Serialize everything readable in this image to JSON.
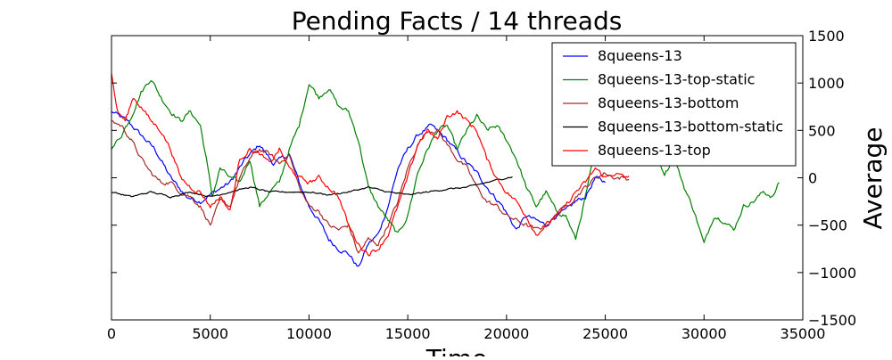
{
  "chart_data": {
    "type": "line",
    "title": "Pending Facts / 14 threads",
    "xlabel": "Time",
    "ylabel": "Average",
    "xlim": [
      0,
      35000
    ],
    "ylim": [
      -1500,
      1500
    ],
    "x_ticks": [
      0,
      5000,
      10000,
      15000,
      20000,
      25000,
      30000,
      35000
    ],
    "y_ticks": [
      -1500,
      -1000,
      -500,
      0,
      500,
      1000,
      1500
    ],
    "y_axis_side": "right",
    "grid": false,
    "legend": "top-right",
    "series": [
      {
        "name": "8queens-13",
        "color": "#0000ff",
        "points": [
          [
            0,
            700
          ],
          [
            800,
            600
          ],
          [
            1500,
            450
          ],
          [
            2200,
            300
          ],
          [
            3000,
            0
          ],
          [
            3800,
            -200
          ],
          [
            4500,
            -250
          ],
          [
            5200,
            -150
          ],
          [
            6000,
            -50
          ],
          [
            6800,
            200
          ],
          [
            7500,
            350
          ],
          [
            8200,
            150
          ],
          [
            9000,
            250
          ],
          [
            9500,
            -50
          ],
          [
            10000,
            -300
          ],
          [
            10500,
            -450
          ],
          [
            11000,
            -650
          ],
          [
            11500,
            -750
          ],
          [
            12000,
            -800
          ],
          [
            12500,
            -950
          ],
          [
            13000,
            -700
          ],
          [
            13500,
            -600
          ],
          [
            14000,
            -300
          ],
          [
            14500,
            100
          ],
          [
            15000,
            300
          ],
          [
            15500,
            450
          ],
          [
            16200,
            550
          ],
          [
            17000,
            400
          ],
          [
            17800,
            200
          ],
          [
            18500,
            50
          ],
          [
            19200,
            -150
          ],
          [
            19800,
            -300
          ],
          [
            20500,
            -550
          ],
          [
            21000,
            -400
          ],
          [
            21500,
            -450
          ],
          [
            22000,
            -500
          ],
          [
            22500,
            -400
          ],
          [
            23000,
            -350
          ],
          [
            23500,
            -250
          ],
          [
            24000,
            -200
          ],
          [
            24500,
            0
          ],
          [
            25000,
            -50
          ]
        ]
      },
      {
        "name": "8queens-13-top-static",
        "color": "#008000",
        "points": [
          [
            0,
            300
          ],
          [
            500,
            450
          ],
          [
            1000,
            650
          ],
          [
            1500,
            900
          ],
          [
            2000,
            1050
          ],
          [
            2500,
            850
          ],
          [
            3000,
            700
          ],
          [
            3500,
            600
          ],
          [
            4000,
            700
          ],
          [
            4500,
            550
          ],
          [
            4800,
            200
          ],
          [
            5100,
            -200
          ],
          [
            5500,
            100
          ],
          [
            6000,
            0
          ],
          [
            6500,
            -50
          ],
          [
            7000,
            200
          ],
          [
            7500,
            -300
          ],
          [
            8000,
            -150
          ],
          [
            8500,
            -50
          ],
          [
            9000,
            300
          ],
          [
            9500,
            550
          ],
          [
            10000,
            1000
          ],
          [
            10500,
            850
          ],
          [
            11000,
            950
          ],
          [
            11500,
            750
          ],
          [
            12000,
            700
          ],
          [
            12500,
            400
          ],
          [
            13000,
            -100
          ],
          [
            13500,
            -300
          ],
          [
            14000,
            -450
          ],
          [
            14500,
            -600
          ],
          [
            15000,
            -400
          ],
          [
            15500,
            50
          ],
          [
            16000,
            300
          ],
          [
            16500,
            500
          ],
          [
            17000,
            550
          ],
          [
            17500,
            300
          ],
          [
            18000,
            500
          ],
          [
            18500,
            650
          ],
          [
            19000,
            500
          ],
          [
            19500,
            550
          ],
          [
            20000,
            400
          ],
          [
            20500,
            200
          ],
          [
            21000,
            -100
          ],
          [
            21500,
            -300
          ],
          [
            22000,
            -150
          ],
          [
            22500,
            -350
          ],
          [
            23000,
            -400
          ],
          [
            23500,
            -650
          ],
          [
            24000,
            -200
          ],
          [
            24500,
            300
          ],
          [
            25000,
            200
          ],
          [
            25500,
            400
          ],
          [
            26000,
            650
          ],
          [
            26500,
            750
          ],
          [
            27000,
            600
          ],
          [
            27500,
            250
          ],
          [
            28000,
            50
          ],
          [
            28500,
            200
          ],
          [
            29000,
            -100
          ],
          [
            29500,
            -350
          ],
          [
            30000,
            -700
          ],
          [
            30500,
            -400
          ],
          [
            31000,
            -450
          ],
          [
            31500,
            -550
          ],
          [
            32000,
            -300
          ],
          [
            32500,
            -250
          ],
          [
            33000,
            -150
          ],
          [
            33500,
            -200
          ],
          [
            33800,
            -50
          ]
        ]
      },
      {
        "name": "8queens-13-bottom",
        "color": "#a52a2a",
        "points": [
          [
            0,
            600
          ],
          [
            500,
            550
          ],
          [
            1000,
            400
          ],
          [
            1500,
            200
          ],
          [
            2000,
            50
          ],
          [
            2500,
            -50
          ],
          [
            3000,
            -50
          ],
          [
            3500,
            -150
          ],
          [
            4000,
            -200
          ],
          [
            4500,
            -300
          ],
          [
            5000,
            -500
          ],
          [
            5500,
            -250
          ],
          [
            6000,
            -300
          ],
          [
            6500,
            0
          ],
          [
            7000,
            200
          ],
          [
            7500,
            300
          ],
          [
            8000,
            250
          ],
          [
            8500,
            150
          ],
          [
            9000,
            250
          ],
          [
            9500,
            -100
          ],
          [
            10000,
            -300
          ],
          [
            10500,
            -350
          ],
          [
            11000,
            -500
          ],
          [
            11500,
            -550
          ],
          [
            12000,
            -500
          ],
          [
            12500,
            -800
          ],
          [
            13000,
            -650
          ],
          [
            13500,
            -700
          ],
          [
            14000,
            -500
          ],
          [
            14500,
            -250
          ],
          [
            15000,
            100
          ],
          [
            15500,
            350
          ],
          [
            16000,
            500
          ],
          [
            16500,
            500
          ],
          [
            17000,
            350
          ],
          [
            17500,
            200
          ],
          [
            18000,
            100
          ],
          [
            18500,
            -100
          ],
          [
            19000,
            -250
          ],
          [
            19500,
            -300
          ],
          [
            20000,
            -400
          ],
          [
            20500,
            -450
          ],
          [
            21000,
            -500
          ],
          [
            21500,
            -550
          ],
          [
            22000,
            -500
          ],
          [
            22500,
            -400
          ],
          [
            23000,
            -300
          ],
          [
            23500,
            -200
          ],
          [
            24000,
            -100
          ],
          [
            24500,
            0
          ],
          [
            25000,
            50
          ],
          [
            25500,
            0
          ],
          [
            26000,
            0
          ],
          [
            26200,
            -20
          ]
        ]
      },
      {
        "name": "8queens-13-bottom-static",
        "color": "#000000",
        "points": [
          [
            0,
            -150
          ],
          [
            1000,
            -200
          ],
          [
            2000,
            -150
          ],
          [
            3000,
            -200
          ],
          [
            4000,
            -150
          ],
          [
            5000,
            -200
          ],
          [
            6000,
            -150
          ],
          [
            7000,
            -100
          ],
          [
            8000,
            -150
          ],
          [
            9000,
            -150
          ],
          [
            10000,
            -150
          ],
          [
            11000,
            -180
          ],
          [
            12000,
            -150
          ],
          [
            13000,
            -100
          ],
          [
            14000,
            -150
          ],
          [
            15000,
            -180
          ],
          [
            16000,
            -150
          ],
          [
            17000,
            -120
          ],
          [
            18000,
            -100
          ],
          [
            19000,
            -50
          ],
          [
            20000,
            0
          ],
          [
            20300,
            10
          ]
        ]
      },
      {
        "name": "8queens-13-top",
        "color": "#ff0000",
        "points": [
          [
            0,
            1100
          ],
          [
            300,
            700
          ],
          [
            700,
            600
          ],
          [
            1100,
            850
          ],
          [
            1500,
            750
          ],
          [
            2000,
            600
          ],
          [
            2500,
            500
          ],
          [
            3000,
            300
          ],
          [
            3500,
            0
          ],
          [
            4000,
            -100
          ],
          [
            4500,
            -150
          ],
          [
            5000,
            -300
          ],
          [
            5500,
            -200
          ],
          [
            6000,
            -350
          ],
          [
            6500,
            200
          ],
          [
            7000,
            300
          ],
          [
            7500,
            250
          ],
          [
            8000,
            150
          ],
          [
            8500,
            300
          ],
          [
            9000,
            100
          ],
          [
            9500,
            0
          ],
          [
            10000,
            -50
          ],
          [
            10500,
            0
          ],
          [
            11000,
            -100
          ],
          [
            11500,
            -200
          ],
          [
            12000,
            -500
          ],
          [
            12500,
            -700
          ],
          [
            13000,
            -800
          ],
          [
            13500,
            -750
          ],
          [
            14000,
            -600
          ],
          [
            14500,
            -300
          ],
          [
            15000,
            0
          ],
          [
            15500,
            350
          ],
          [
            16000,
            500
          ],
          [
            16500,
            400
          ],
          [
            17000,
            650
          ],
          [
            17500,
            700
          ],
          [
            18000,
            600
          ],
          [
            18500,
            500
          ],
          [
            19000,
            200
          ],
          [
            19500,
            0
          ],
          [
            20000,
            -150
          ],
          [
            20500,
            -250
          ],
          [
            21000,
            -400
          ],
          [
            21500,
            -600
          ],
          [
            22000,
            -500
          ],
          [
            22500,
            -400
          ],
          [
            23000,
            -300
          ],
          [
            23500,
            -150
          ],
          [
            24000,
            -50
          ],
          [
            24500,
            100
          ],
          [
            25000,
            0
          ],
          [
            25500,
            50
          ],
          [
            26000,
            0
          ],
          [
            26200,
            20
          ]
        ]
      }
    ]
  }
}
